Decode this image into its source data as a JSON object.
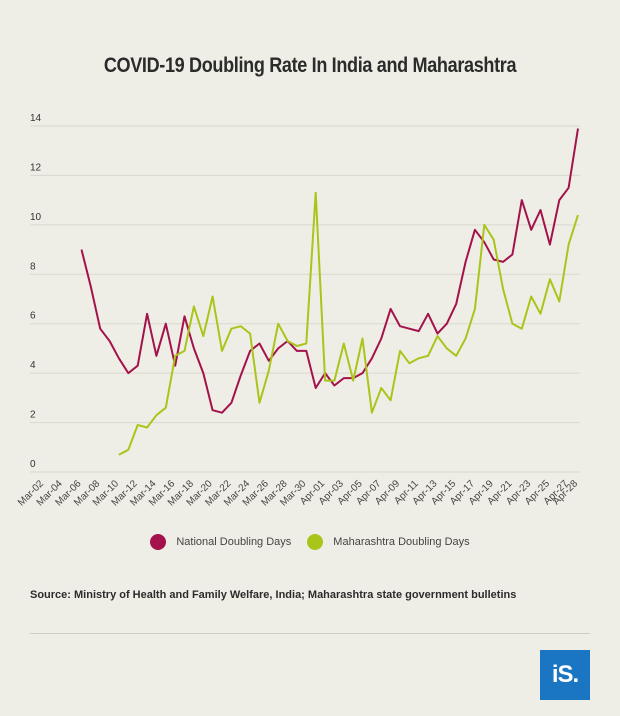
{
  "title": "COVID-19 Doubling Rate In India and Maharashtra",
  "source": "Source: Ministry of Health and Family Welfare, India; Maharashtra state government bulletins",
  "logo_text": "iS.",
  "legend": [
    {
      "label": "National Doubling Days",
      "color": "#a3124b"
    },
    {
      "label": "Maharashtra Doubling Days",
      "color": "#a9c51a"
    }
  ],
  "chart_data": {
    "type": "line",
    "title": "COVID-19 Doubling Rate In India and Maharashtra",
    "xlabel": "",
    "ylabel": "",
    "ylim": [
      0,
      14
    ],
    "yticks": [
      0,
      2,
      4,
      6,
      8,
      10,
      12,
      14
    ],
    "grid": true,
    "legend_position": "bottom",
    "x": [
      "Mar-02",
      "Mar-03",
      "Mar-04",
      "Mar-05",
      "Mar-06",
      "Mar-07",
      "Mar-08",
      "Mar-09",
      "Mar-10",
      "Mar-11",
      "Mar-12",
      "Mar-13",
      "Mar-14",
      "Mar-15",
      "Mar-16",
      "Mar-17",
      "Mar-18",
      "Mar-19",
      "Mar-20",
      "Mar-21",
      "Mar-22",
      "Mar-23",
      "Mar-24",
      "Mar-25",
      "Mar-26",
      "Mar-27",
      "Mar-28",
      "Mar-29",
      "Mar-30",
      "Mar-31",
      "Apr-01",
      "Apr-02",
      "Apr-03",
      "Apr-04",
      "Apr-05",
      "Apr-06",
      "Apr-07",
      "Apr-08",
      "Apr-09",
      "Apr-10",
      "Apr-11",
      "Apr-12",
      "Apr-13",
      "Apr-14",
      "Apr-15",
      "Apr-16",
      "Apr-17",
      "Apr-18",
      "Apr-19",
      "Apr-20",
      "Apr-21",
      "Apr-22",
      "Apr-23",
      "Apr-24",
      "Apr-25",
      "Apr-26",
      "Apr-27",
      "Apr-28"
    ],
    "x_tick_labels": [
      "Mar-02",
      "Mar-04",
      "Mar-06",
      "Mar-08",
      "Mar-10",
      "Mar-12",
      "Mar-14",
      "Mar-16",
      "Mar-18",
      "Mar-20",
      "Mar-22",
      "Mar-24",
      "Mar-26",
      "Mar-28",
      "Mar-30",
      "Apr-01",
      "Apr-03",
      "Apr-05",
      "Apr-07",
      "Apr-09",
      "Apr-11",
      "Apr-13",
      "Apr-15",
      "Apr-17",
      "Apr-19",
      "Apr-21",
      "Apr-23",
      "Apr-25",
      "Apr-27",
      "Apr-28"
    ],
    "series": [
      {
        "name": "National Doubling Days",
        "color": "#a3124b",
        "values": [
          null,
          null,
          null,
          null,
          9.0,
          7.5,
          5.8,
          5.3,
          4.6,
          4.0,
          4.3,
          6.4,
          4.7,
          6.0,
          4.3,
          6.3,
          5.0,
          4.0,
          2.5,
          2.4,
          2.8,
          3.9,
          4.9,
          5.2,
          4.5,
          5.0,
          5.3,
          4.9,
          4.9,
          3.4,
          4.0,
          3.5,
          3.8,
          3.8,
          4.0,
          4.6,
          5.4,
          6.6,
          5.9,
          5.8,
          5.7,
          6.4,
          5.6,
          6.0,
          6.8,
          8.5,
          9.8,
          9.3,
          8.6,
          8.5,
          8.8,
          11.0,
          9.8,
          10.6,
          9.2,
          11.0,
          11.5,
          13.9
        ]
      },
      {
        "name": "Maharashtra Doubling Days",
        "color": "#a9c51a",
        "values": [
          null,
          null,
          null,
          null,
          null,
          null,
          null,
          null,
          0.7,
          0.9,
          1.9,
          1.8,
          2.3,
          2.6,
          4.7,
          4.9,
          6.7,
          5.5,
          7.1,
          4.9,
          5.8,
          5.9,
          5.6,
          2.8,
          4.1,
          6.0,
          5.3,
          5.1,
          5.2,
          11.3,
          3.7,
          3.7,
          5.2,
          3.7,
          5.4,
          2.4,
          3.4,
          2.9,
          4.9,
          4.4,
          4.6,
          4.7,
          5.5,
          5.0,
          4.7,
          5.4,
          6.6,
          10.0,
          9.4,
          7.4,
          6.0,
          5.8,
          7.1,
          6.4,
          7.8,
          6.9,
          9.2,
          10.4
        ]
      }
    ]
  }
}
